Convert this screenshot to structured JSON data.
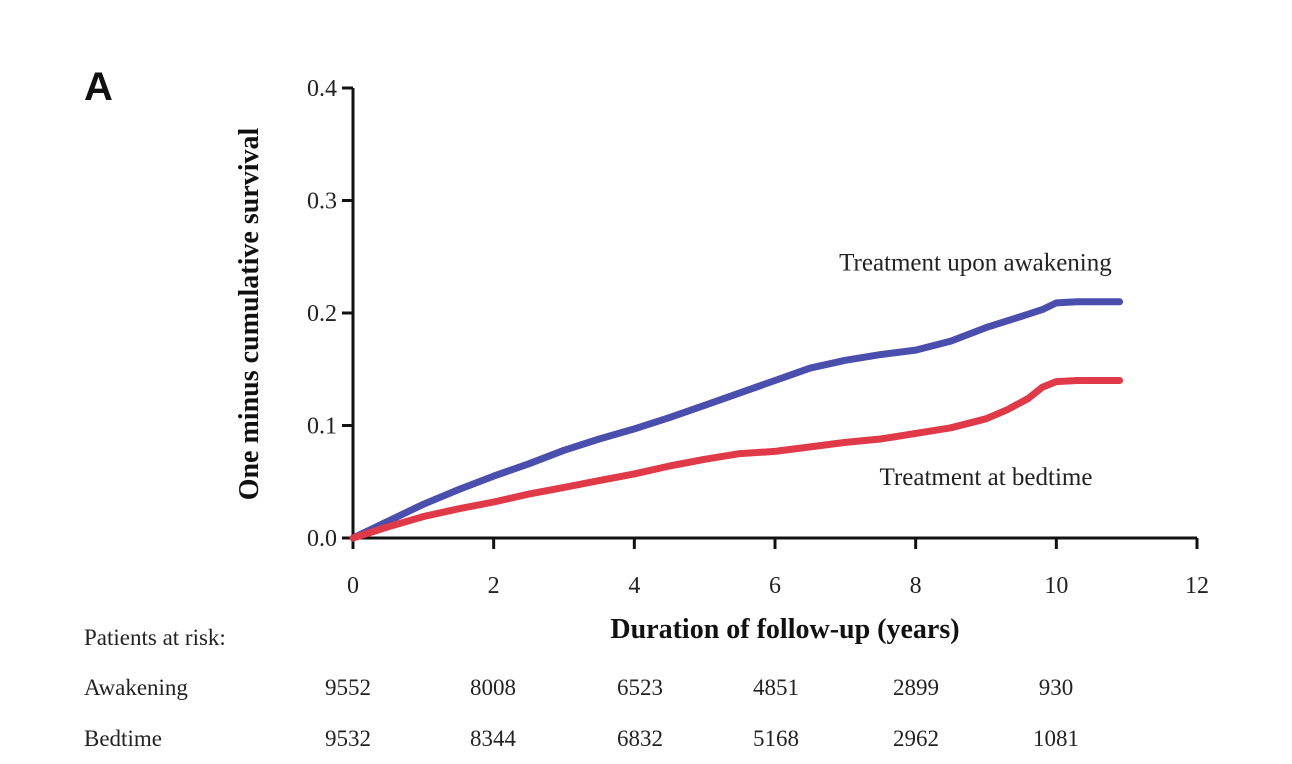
{
  "panel_label": "A",
  "chart_data": {
    "type": "line",
    "title": "",
    "xlabel": "Duration of follow-up (years)",
    "ylabel": "One minus cumulative survival",
    "xlim": [
      0,
      12
    ],
    "ylim": [
      0,
      0.4
    ],
    "x_ticks": [
      0,
      2,
      4,
      6,
      8,
      10,
      12
    ],
    "x_tick_labels": [
      "0",
      "2",
      "4",
      "6",
      "8",
      "10",
      "12"
    ],
    "y_ticks": [
      0.0,
      0.1,
      0.2,
      0.3,
      0.4
    ],
    "y_tick_labels": [
      "0.0",
      "0.1",
      "0.2",
      "0.3",
      "0.4"
    ],
    "grid": false,
    "series": [
      {
        "name": "Treatment upon awakening",
        "color": "#4a4fae",
        "x": [
          0,
          0.5,
          1,
          1.5,
          2,
          2.5,
          3,
          3.5,
          4,
          4.5,
          5,
          5.5,
          6,
          6.5,
          7,
          7.5,
          8,
          8.5,
          9,
          9.5,
          9.8,
          10,
          10.3,
          10.9
        ],
        "y": [
          0,
          0.015,
          0.03,
          0.043,
          0.055,
          0.066,
          0.078,
          0.088,
          0.097,
          0.107,
          0.118,
          0.129,
          0.14,
          0.151,
          0.158,
          0.163,
          0.167,
          0.175,
          0.187,
          0.197,
          0.203,
          0.209,
          0.21,
          0.21
        ]
      },
      {
        "name": "Treatment at bedtime",
        "color": "#e03a48",
        "x": [
          0,
          0.5,
          1,
          1.5,
          2,
          2.5,
          3,
          3.5,
          4,
          4.5,
          5,
          5.5,
          6,
          6.5,
          7,
          7.5,
          8,
          8.5,
          9,
          9.3,
          9.6,
          9.8,
          10,
          10.3,
          10.9
        ],
        "y": [
          0,
          0.01,
          0.019,
          0.026,
          0.032,
          0.039,
          0.045,
          0.051,
          0.057,
          0.064,
          0.07,
          0.075,
          0.077,
          0.081,
          0.085,
          0.088,
          0.093,
          0.098,
          0.106,
          0.114,
          0.124,
          0.134,
          0.139,
          0.14,
          0.14
        ]
      }
    ],
    "annotations": [
      {
        "text": "Treatment upon awakening",
        "x": 8.85,
        "y": 0.238
      },
      {
        "text": "Treatment at bedtime",
        "x": 9.0,
        "y": 0.047
      }
    ]
  },
  "risk_table": {
    "header": "Patients at risk:",
    "rows": [
      {
        "label": "Awakening",
        "values": [
          "9552",
          "8008",
          "6523",
          "4851",
          "2899",
          "930"
        ]
      },
      {
        "label": "Bedtime",
        "values": [
          "9532",
          "8344",
          "6832",
          "5168",
          "2962",
          "1081"
        ]
      }
    ]
  }
}
